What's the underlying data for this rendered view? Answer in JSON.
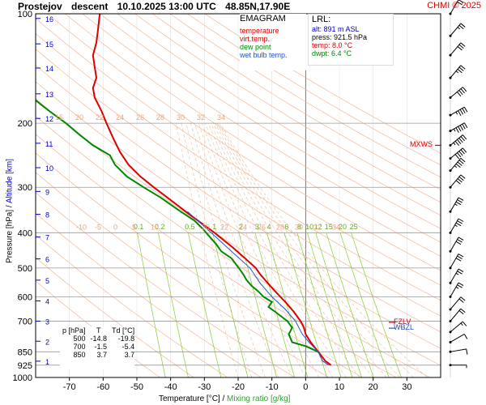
{
  "title": {
    "station": "Prostejov",
    "profile_type": "descent",
    "datetime": "10.10.2025 13:00 UTC",
    "coords": "48.85N,17.90E"
  },
  "copyright": "CHMI © 2025",
  "legend": {
    "title": "EMAGRAM",
    "items": [
      {
        "label": "temperature",
        "color": "#dd0000"
      },
      {
        "label": "virt.temp.",
        "color": "#dd0000"
      },
      {
        "label": "dew point",
        "color": "#008800"
      },
      {
        "label": "wet bulb temp.",
        "color": "#2255cc"
      }
    ]
  },
  "lrl": {
    "title": "LRL:",
    "alt": "alt: 891 m ASL",
    "press": "press: 921.5 hPa",
    "temp": "temp: 8.0 °C",
    "dwpt": "dwpt: 6.4 °C"
  },
  "table": {
    "headers": [
      "p [hPa]",
      "T",
      "Td [°C]"
    ],
    "rows": [
      [
        "500",
        "-14.8",
        "-19.8"
      ],
      [
        "700",
        "-1.5",
        "-5.4"
      ],
      [
        "850",
        "3.7",
        "3.7"
      ]
    ]
  },
  "markers": {
    "mxws": "MXWS",
    "fzlv": "FZLV",
    "wbzl": "WBZL"
  },
  "axes": {
    "x_label_part1": "Temperature [°C]",
    "x_label_sep": "/",
    "x_label_part2": "Mixing ratio [g/kg]",
    "y_label_part1": "Pressure [hPa]",
    "y_label_sep": "/",
    "y_label_part2": "Altitude [km]"
  },
  "colors": {
    "temperature": "#dd0000",
    "dew_point": "#008800",
    "wet_bulb": "#2255cc",
    "dry_adiabat": "#f0b89a",
    "mixing_ratio": "#88cc33",
    "isobar": "#888888",
    "altitude": "#0000cc"
  },
  "chart_data": {
    "type": "line",
    "chart_kind": "emagram",
    "xlim": [
      -80,
      40
    ],
    "ylim_hpa": [
      1000,
      100
    ],
    "y_scale": "log",
    "x_ticks": [
      -70,
      -60,
      -50,
      -40,
      -30,
      -20,
      -10,
      0,
      10,
      20,
      30
    ],
    "y_ticks": [
      100,
      200,
      300,
      400,
      500,
      600,
      700,
      850,
      925,
      1000
    ],
    "altitude_ticks_km": [
      {
        "km": "1",
        "p": 902
      },
      {
        "km": "2",
        "p": 795
      },
      {
        "km": "3",
        "p": 700
      },
      {
        "km": "4",
        "p": 616
      },
      {
        "km": "5",
        "p": 540
      },
      {
        "km": "6",
        "p": 472
      },
      {
        "km": "7",
        "p": 411
      },
      {
        "km": "8",
        "p": 356
      },
      {
        "km": "9",
        "p": 308
      },
      {
        "km": "10",
        "p": 265
      },
      {
        "km": "11",
        "p": 227
      },
      {
        "km": "12",
        "p": 194
      },
      {
        "km": "13",
        "p": 166
      },
      {
        "km": "14",
        "p": 141
      },
      {
        "km": "15",
        "p": 121
      },
      {
        "km": "16",
        "p": 103
      }
    ],
    "mixing_ratio_labels": [
      "0.1",
      "0.2",
      "0.5",
      "1",
      "2",
      "3",
      "4",
      "6",
      "8",
      "10",
      "12",
      "15",
      "20",
      "25"
    ],
    "mixing_ratio_values": [
      0.1,
      0.2,
      0.5,
      1,
      2,
      3,
      4,
      6,
      8,
      10,
      12,
      15,
      20,
      25
    ],
    "adiabat_labels_row1": [
      "-10",
      "-5",
      "0",
      "5",
      "10",
      "20",
      "22",
      "24",
      "26",
      "28",
      "30",
      "32",
      "34"
    ],
    "adiabat_labels_row2": [
      "15",
      "20",
      "22",
      "24",
      "26",
      "28",
      "30",
      "32",
      "34"
    ],
    "series": [
      {
        "name": "temperature",
        "color": "#dd0000",
        "points": [
          [
            925,
            7.5
          ],
          [
            900,
            5.8
          ],
          [
            850,
            3.7
          ],
          [
            800,
            1.5
          ],
          [
            760,
            0.0
          ],
          [
            730,
            -0.5
          ],
          [
            700,
            -1.5
          ],
          [
            660,
            -3.5
          ],
          [
            620,
            -6.0
          ],
          [
            600,
            -7.5
          ],
          [
            560,
            -10.5
          ],
          [
            520,
            -13.5
          ],
          [
            500,
            -14.8
          ],
          [
            470,
            -18.0
          ],
          [
            440,
            -21.5
          ],
          [
            400,
            -27.0
          ],
          [
            370,
            -32.0
          ],
          [
            350,
            -35.5
          ],
          [
            320,
            -41.0
          ],
          [
            300,
            -45.0
          ],
          [
            280,
            -49.0
          ],
          [
            260,
            -52.5
          ],
          [
            240,
            -55.0
          ],
          [
            220,
            -57.0
          ],
          [
            200,
            -59.0
          ],
          [
            185,
            -60.5
          ],
          [
            170,
            -62.5
          ],
          [
            160,
            -63.0
          ],
          [
            150,
            -62.0
          ],
          [
            140,
            -62.5
          ],
          [
            130,
            -63.0
          ],
          [
            120,
            -62.0
          ],
          [
            110,
            -61.5
          ],
          [
            100,
            -61.0
          ]
        ]
      },
      {
        "name": "dew point",
        "color": "#008800",
        "points": [
          [
            850,
            3.7
          ],
          [
            820,
            0.0
          ],
          [
            800,
            -4.0
          ],
          [
            760,
            -5.0
          ],
          [
            730,
            -4.0
          ],
          [
            700,
            -5.4
          ],
          [
            660,
            -9.0
          ],
          [
            640,
            -11.0
          ],
          [
            620,
            -10.0
          ],
          [
            600,
            -12.5
          ],
          [
            580,
            -14.0
          ],
          [
            560,
            -16.0
          ],
          [
            540,
            -17.5
          ],
          [
            520,
            -18.5
          ],
          [
            500,
            -19.8
          ],
          [
            470,
            -22.0
          ],
          [
            450,
            -25.0
          ],
          [
            430,
            -26.5
          ],
          [
            410,
            -28.5
          ],
          [
            390,
            -30.5
          ],
          [
            370,
            -33.0
          ],
          [
            350,
            -37.0
          ],
          [
            320,
            -43.0
          ],
          [
            300,
            -48.0
          ],
          [
            280,
            -53.0
          ],
          [
            260,
            -56.5
          ],
          [
            245,
            -58.0
          ],
          [
            230,
            -63.0
          ],
          [
            215,
            -67.0
          ],
          [
            200,
            -71.0
          ],
          [
            185,
            -76.0
          ],
          [
            170,
            -81.0
          ]
        ]
      },
      {
        "name": "wet bulb temp.",
        "color": "#2255cc",
        "points": [
          [
            925,
            6.8
          ],
          [
            900,
            5.0
          ],
          [
            850,
            3.7
          ],
          [
            800,
            1.0
          ],
          [
            760,
            -1.0
          ],
          [
            700,
            -3.0
          ],
          [
            650,
            -6.0
          ],
          [
            600,
            -10.0
          ],
          [
            550,
            -13.5
          ],
          [
            500,
            -16.5
          ],
          [
            450,
            -22.0
          ],
          [
            400,
            -28.0
          ],
          [
            350,
            -35.0
          ]
        ]
      }
    ],
    "wind_barbs": [
      {
        "p": 925,
        "dir": 90,
        "spd": 5
      },
      {
        "p": 850,
        "dir": 80,
        "spd": 10
      },
      {
        "p": 800,
        "dir": 60,
        "spd": 10
      },
      {
        "p": 750,
        "dir": 50,
        "spd": 15
      },
      {
        "p": 700,
        "dir": 40,
        "spd": 20
      },
      {
        "p": 650,
        "dir": 40,
        "spd": 20
      },
      {
        "p": 600,
        "dir": 30,
        "spd": 25
      },
      {
        "p": 550,
        "dir": 30,
        "spd": 25
      },
      {
        "p": 500,
        "dir": 30,
        "spd": 30
      },
      {
        "p": 450,
        "dir": 30,
        "spd": 30
      },
      {
        "p": 400,
        "dir": 30,
        "spd": 35
      },
      {
        "p": 350,
        "dir": 30,
        "spd": 35
      },
      {
        "p": 300,
        "dir": 40,
        "spd": 40
      },
      {
        "p": 270,
        "dir": 40,
        "spd": 45
      },
      {
        "p": 250,
        "dir": 50,
        "spd": 50
      },
      {
        "p": 230,
        "dir": 50,
        "spd": 55
      },
      {
        "p": 210,
        "dir": 60,
        "spd": 55
      },
      {
        "p": 190,
        "dir": 60,
        "spd": 45
      },
      {
        "p": 170,
        "dir": 50,
        "spd": 40
      },
      {
        "p": 150,
        "dir": 40,
        "spd": 35
      },
      {
        "p": 130,
        "dir": 40,
        "spd": 30
      },
      {
        "p": 115,
        "dir": 40,
        "spd": 25
      },
      {
        "p": 100,
        "dir": 30,
        "spd": 20
      }
    ],
    "markers": [
      {
        "label": "MXWS",
        "p": 230
      },
      {
        "label": "FZLV",
        "p": 705
      },
      {
        "label": "WBZL",
        "p": 732
      }
    ]
  }
}
